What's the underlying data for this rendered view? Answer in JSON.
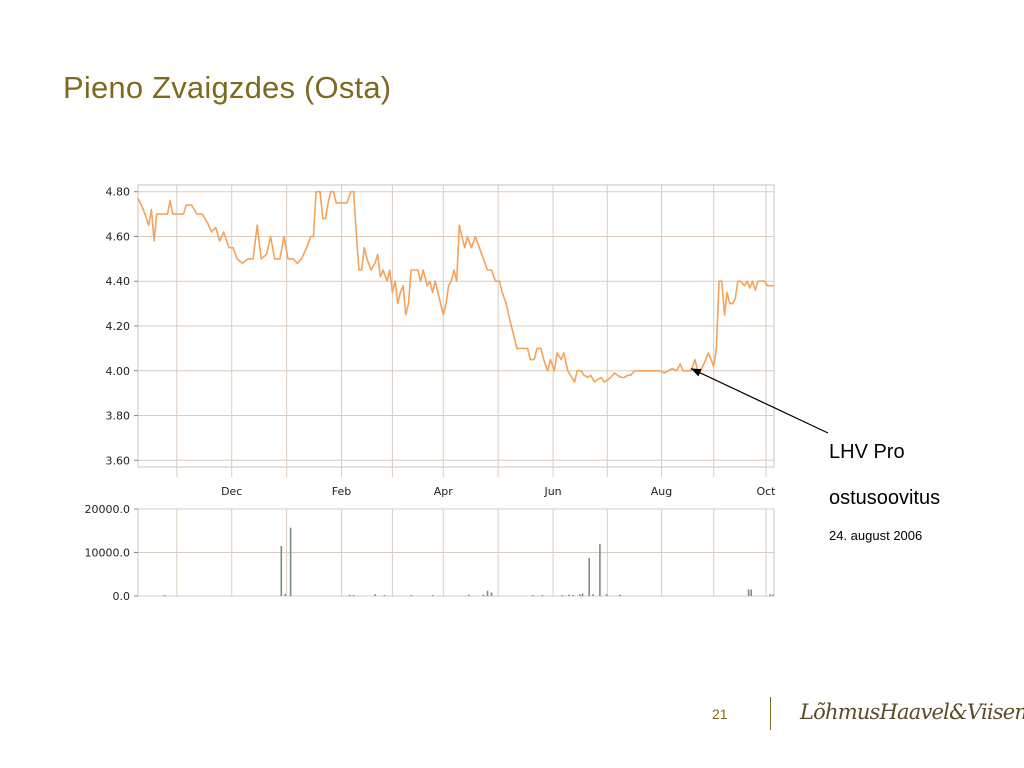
{
  "slide": {
    "title": "Pieno Zvaigzdes (Osta)",
    "page_number": "21",
    "logo": "LõhmusHaavel&Viisemann"
  },
  "annotation": {
    "line1": "LHV Pro",
    "line2": "ostusoovitus",
    "date": "24. august 2006"
  },
  "colors": {
    "title": "#7d6a1f",
    "price_line": "#f5a25a",
    "grid": "#d9ccc0",
    "volume_bar": "#7d8c80"
  },
  "chart_data": [
    {
      "type": "line",
      "series": [
        {
          "values": [
            {
              "x": 0,
              "y": 4.77
            },
            {
              "x": 0.4,
              "y": 4.72
            },
            {
              "x": 0.8,
              "y": 4.65
            },
            {
              "x": 1.0,
              "y": 4.72
            },
            {
              "x": 1.2,
              "y": 4.58
            },
            {
              "x": 1.4,
              "y": 4.7
            },
            {
              "x": 2.2,
              "y": 4.7
            },
            {
              "x": 2.4,
              "y": 4.76
            },
            {
              "x": 2.6,
              "y": 4.7
            },
            {
              "x": 3.4,
              "y": 4.7
            },
            {
              "x": 3.6,
              "y": 4.74
            },
            {
              "x": 4.0,
              "y": 4.74
            },
            {
              "x": 4.4,
              "y": 4.7
            },
            {
              "x": 4.8,
              "y": 4.7
            },
            {
              "x": 5.2,
              "y": 4.66
            },
            {
              "x": 5.5,
              "y": 4.62
            },
            {
              "x": 5.8,
              "y": 4.64
            },
            {
              "x": 6.1,
              "y": 4.58
            },
            {
              "x": 6.4,
              "y": 4.62
            },
            {
              "x": 6.8,
              "y": 4.55
            },
            {
              "x": 7.1,
              "y": 4.55
            },
            {
              "x": 7.4,
              "y": 4.5
            },
            {
              "x": 7.8,
              "y": 4.48
            },
            {
              "x": 8.2,
              "y": 4.5
            },
            {
              "x": 8.6,
              "y": 4.5
            },
            {
              "x": 8.9,
              "y": 4.65
            },
            {
              "x": 9.2,
              "y": 4.5
            },
            {
              "x": 9.6,
              "y": 4.52
            },
            {
              "x": 9.9,
              "y": 4.6
            },
            {
              "x": 10.2,
              "y": 4.5
            },
            {
              "x": 10.6,
              "y": 4.5
            },
            {
              "x": 10.9,
              "y": 4.6
            },
            {
              "x": 11.2,
              "y": 4.5
            },
            {
              "x": 11.6,
              "y": 4.5
            },
            {
              "x": 11.9,
              "y": 4.48
            },
            {
              "x": 12.2,
              "y": 4.5
            },
            {
              "x": 12.6,
              "y": 4.55
            },
            {
              "x": 12.9,
              "y": 4.6
            },
            {
              "x": 13.1,
              "y": 4.6
            },
            {
              "x": 13.3,
              "y": 4.8
            },
            {
              "x": 13.6,
              "y": 4.8
            },
            {
              "x": 13.8,
              "y": 4.68
            },
            {
              "x": 14.0,
              "y": 4.68
            },
            {
              "x": 14.2,
              "y": 4.75
            },
            {
              "x": 14.4,
              "y": 4.8
            },
            {
              "x": 14.6,
              "y": 4.8
            },
            {
              "x": 14.8,
              "y": 4.75
            },
            {
              "x": 15.2,
              "y": 4.75
            },
            {
              "x": 15.6,
              "y": 4.75
            },
            {
              "x": 15.9,
              "y": 4.8
            },
            {
              "x": 16.1,
              "y": 4.8
            },
            {
              "x": 16.3,
              "y": 4.62
            },
            {
              "x": 16.5,
              "y": 4.45
            },
            {
              "x": 16.7,
              "y": 4.45
            },
            {
              "x": 16.9,
              "y": 4.55
            },
            {
              "x": 17.1,
              "y": 4.5
            },
            {
              "x": 17.4,
              "y": 4.45
            },
            {
              "x": 17.7,
              "y": 4.48
            },
            {
              "x": 17.9,
              "y": 4.52
            },
            {
              "x": 18.1,
              "y": 4.42
            },
            {
              "x": 18.3,
              "y": 4.45
            },
            {
              "x": 18.6,
              "y": 4.4
            },
            {
              "x": 18.8,
              "y": 4.45
            },
            {
              "x": 19.0,
              "y": 4.35
            },
            {
              "x": 19.2,
              "y": 4.4
            },
            {
              "x": 19.4,
              "y": 4.3
            },
            {
              "x": 19.6,
              "y": 4.35
            },
            {
              "x": 19.8,
              "y": 4.38
            },
            {
              "x": 20.0,
              "y": 4.25
            },
            {
              "x": 20.2,
              "y": 4.3
            },
            {
              "x": 20.4,
              "y": 4.45
            },
            {
              "x": 20.6,
              "y": 4.45
            },
            {
              "x": 20.9,
              "y": 4.45
            },
            {
              "x": 21.1,
              "y": 4.4
            },
            {
              "x": 21.3,
              "y": 4.45
            },
            {
              "x": 21.6,
              "y": 4.38
            },
            {
              "x": 21.8,
              "y": 4.4
            },
            {
              "x": 22.0,
              "y": 4.35
            },
            {
              "x": 22.2,
              "y": 4.4
            },
            {
              "x": 22.4,
              "y": 4.35
            },
            {
              "x": 22.6,
              "y": 4.3
            },
            {
              "x": 22.8,
              "y": 4.25
            },
            {
              "x": 23.0,
              "y": 4.3
            },
            {
              "x": 23.2,
              "y": 4.38
            },
            {
              "x": 23.4,
              "y": 4.4
            },
            {
              "x": 23.6,
              "y": 4.45
            },
            {
              "x": 23.8,
              "y": 4.4
            },
            {
              "x": 24.0,
              "y": 4.65
            },
            {
              "x": 24.2,
              "y": 4.6
            },
            {
              "x": 24.4,
              "y": 4.55
            },
            {
              "x": 24.6,
              "y": 4.6
            },
            {
              "x": 24.9,
              "y": 4.55
            },
            {
              "x": 25.2,
              "y": 4.6
            },
            {
              "x": 25.5,
              "y": 4.55
            },
            {
              "x": 25.8,
              "y": 4.5
            },
            {
              "x": 26.1,
              "y": 4.45
            },
            {
              "x": 26.4,
              "y": 4.45
            },
            {
              "x": 26.7,
              "y": 4.4
            },
            {
              "x": 27.0,
              "y": 4.4
            },
            {
              "x": 27.2,
              "y": 4.35
            },
            {
              "x": 27.5,
              "y": 4.3
            },
            {
              "x": 27.8,
              "y": 4.22
            },
            {
              "x": 28.1,
              "y": 4.15
            },
            {
              "x": 28.3,
              "y": 4.1
            },
            {
              "x": 28.6,
              "y": 4.1
            },
            {
              "x": 28.9,
              "y": 4.1
            },
            {
              "x": 29.1,
              "y": 4.1
            },
            {
              "x": 29.3,
              "y": 4.05
            },
            {
              "x": 29.6,
              "y": 4.05
            },
            {
              "x": 29.8,
              "y": 4.1
            },
            {
              "x": 30.1,
              "y": 4.1
            },
            {
              "x": 30.3,
              "y": 4.05
            },
            {
              "x": 30.6,
              "y": 4.0
            },
            {
              "x": 30.8,
              "y": 4.05
            },
            {
              "x": 31.1,
              "y": 4.0
            },
            {
              "x": 31.3,
              "y": 4.08
            },
            {
              "x": 31.6,
              "y": 4.05
            },
            {
              "x": 31.8,
              "y": 4.08
            },
            {
              "x": 32.1,
              "y": 4.0
            },
            {
              "x": 32.3,
              "y": 3.98
            },
            {
              "x": 32.6,
              "y": 3.95
            },
            {
              "x": 32.8,
              "y": 4.0
            },
            {
              "x": 33.1,
              "y": 4.0
            },
            {
              "x": 33.3,
              "y": 3.98
            },
            {
              "x": 33.6,
              "y": 3.97
            },
            {
              "x": 33.8,
              "y": 3.98
            },
            {
              "x": 34.1,
              "y": 3.95
            },
            {
              "x": 34.3,
              "y": 3.96
            },
            {
              "x": 34.6,
              "y": 3.97
            },
            {
              "x": 34.8,
              "y": 3.95
            },
            {
              "x": 35.1,
              "y": 3.96
            },
            {
              "x": 35.3,
              "y": 3.97
            },
            {
              "x": 35.6,
              "y": 3.99
            },
            {
              "x": 35.8,
              "y": 3.98
            },
            {
              "x": 36.1,
              "y": 3.97
            },
            {
              "x": 36.3,
              "y": 3.97
            },
            {
              "x": 36.6,
              "y": 3.98
            },
            {
              "x": 36.8,
              "y": 3.98
            },
            {
              "x": 37.1,
              "y": 4.0
            },
            {
              "x": 37.5,
              "y": 4.0
            },
            {
              "x": 38.0,
              "y": 4.0
            },
            {
              "x": 38.5,
              "y": 4.0
            },
            {
              "x": 39.0,
              "y": 4.0
            },
            {
              "x": 39.3,
              "y": 3.99
            },
            {
              "x": 39.6,
              "y": 4.0
            },
            {
              "x": 39.9,
              "y": 4.01
            },
            {
              "x": 40.2,
              "y": 4.0
            },
            {
              "x": 40.5,
              "y": 4.03
            },
            {
              "x": 40.7,
              "y": 4.0
            },
            {
              "x": 41.0,
              "y": 4.0
            },
            {
              "x": 41.3,
              "y": 4.0
            },
            {
              "x": 41.6,
              "y": 4.05
            },
            {
              "x": 41.8,
              "y": 4.0
            },
            {
              "x": 42.1,
              "y": 4.01
            },
            {
              "x": 42.4,
              "y": 4.05
            },
            {
              "x": 42.6,
              "y": 4.08
            },
            {
              "x": 42.8,
              "y": 4.05
            },
            {
              "x": 43.0,
              "y": 4.02
            },
            {
              "x": 43.2,
              "y": 4.1
            },
            {
              "x": 43.4,
              "y": 4.4
            },
            {
              "x": 43.6,
              "y": 4.4
            },
            {
              "x": 43.8,
              "y": 4.25
            },
            {
              "x": 44.0,
              "y": 4.35
            },
            {
              "x": 44.2,
              "y": 4.3
            },
            {
              "x": 44.4,
              "y": 4.3
            },
            {
              "x": 44.6,
              "y": 4.32
            },
            {
              "x": 44.8,
              "y": 4.4
            },
            {
              "x": 45.0,
              "y": 4.4
            },
            {
              "x": 45.3,
              "y": 4.38
            },
            {
              "x": 45.5,
              "y": 4.4
            },
            {
              "x": 45.7,
              "y": 4.37
            },
            {
              "x": 45.9,
              "y": 4.4
            },
            {
              "x": 46.1,
              "y": 4.36
            },
            {
              "x": 46.3,
              "y": 4.4
            },
            {
              "x": 46.5,
              "y": 4.4
            },
            {
              "x": 46.8,
              "y": 4.4
            },
            {
              "x": 47.0,
              "y": 4.38
            },
            {
              "x": 47.5,
              "y": 4.38
            }
          ]
        }
      ],
      "ylim": [
        3.57,
        4.83
      ],
      "yticks": [
        {
          "value": 4.8,
          "label": "4.80"
        },
        {
          "value": 4.6,
          "label": "4.60"
        },
        {
          "value": 4.4,
          "label": "4.40"
        },
        {
          "value": 4.2,
          "label": "4.20"
        },
        {
          "value": 4.0,
          "label": "4.00"
        },
        {
          "value": 3.8,
          "label": "3.80"
        },
        {
          "value": 3.6,
          "label": "3.60"
        }
      ],
      "xlim": [
        0,
        47.5
      ],
      "xticks": [
        {
          "value": 7.0,
          "label": "Dec"
        },
        {
          "value": 15.2,
          "label": "Feb"
        },
        {
          "value": 22.8,
          "label": "Apr"
        },
        {
          "value": 31.0,
          "label": "Jun"
        },
        {
          "value": 39.1,
          "label": "Aug"
        },
        {
          "value": 46.9,
          "label": "Oct"
        }
      ],
      "annotation_point": {
        "x": 41.3,
        "y": 4.01
      },
      "grid": true
    },
    {
      "type": "bar",
      "series": [
        {
          "values": [
            {
              "x": 2.0,
              "y": 200
            },
            {
              "x": 10.7,
              "y": 11500
            },
            {
              "x": 11.0,
              "y": 500
            },
            {
              "x": 11.4,
              "y": 15700
            },
            {
              "x": 15.8,
              "y": 300
            },
            {
              "x": 16.1,
              "y": 200
            },
            {
              "x": 17.7,
              "y": 400
            },
            {
              "x": 18.4,
              "y": 200
            },
            {
              "x": 20.4,
              "y": 200
            },
            {
              "x": 22.0,
              "y": 200
            },
            {
              "x": 24.7,
              "y": 300
            },
            {
              "x": 25.8,
              "y": 300
            },
            {
              "x": 26.1,
              "y": 1200
            },
            {
              "x": 26.4,
              "y": 800
            },
            {
              "x": 29.5,
              "y": 200
            },
            {
              "x": 30.2,
              "y": 200
            },
            {
              "x": 31.7,
              "y": 200
            },
            {
              "x": 32.2,
              "y": 300
            },
            {
              "x": 32.5,
              "y": 200
            },
            {
              "x": 33.0,
              "y": 400
            },
            {
              "x": 33.2,
              "y": 600
            },
            {
              "x": 33.7,
              "y": 8700
            },
            {
              "x": 34.0,
              "y": 400
            },
            {
              "x": 34.5,
              "y": 11900
            },
            {
              "x": 35.0,
              "y": 400
            },
            {
              "x": 36.0,
              "y": 300
            },
            {
              "x": 45.6,
              "y": 1500
            },
            {
              "x": 45.8,
              "y": 1500
            },
            {
              "x": 47.2,
              "y": 400
            },
            {
              "x": 47.4,
              "y": 300
            }
          ]
        }
      ],
      "ylim": [
        0,
        20000
      ],
      "yticks": [
        {
          "value": 20000,
          "label": "20000.0"
        },
        {
          "value": 10000,
          "label": "10000.0"
        },
        {
          "value": 0,
          "label": "0.0"
        }
      ],
      "xlim": [
        0,
        47.5
      ],
      "grid": true
    }
  ]
}
